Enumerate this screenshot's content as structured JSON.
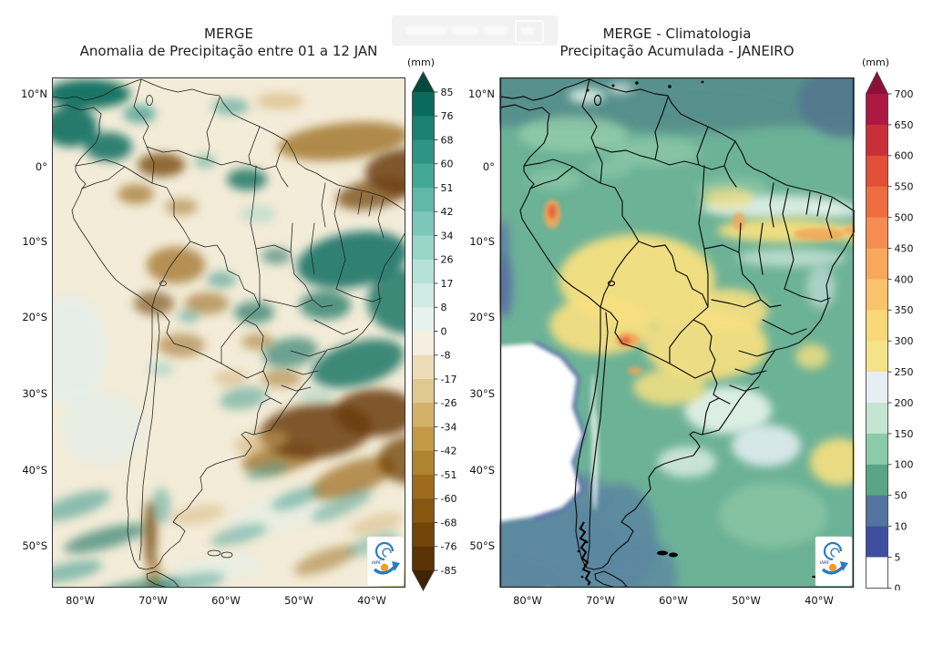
{
  "figure": {
    "left_panel": {
      "title_line1": "MERGE",
      "title_line2": "Anomalia de Precipitação entre 01 a 12 JAN",
      "colorbar": {
        "unit": "(mm)",
        "extend_top": true,
        "extend_bottom": true,
        "arrow_top_color": "#04493e",
        "arrow_bottom_color": "#3f2303",
        "ticks": [
          "85",
          "76",
          "68",
          "60",
          "51",
          "42",
          "34",
          "26",
          "17",
          "8",
          "0",
          "-8",
          "-17",
          "-26",
          "-34",
          "-42",
          "-51",
          "-60",
          "-68",
          "-76",
          "-85"
        ],
        "segment_colors_top_to_bottom": [
          "#0a6b5d",
          "#1b8070",
          "#2e9484",
          "#45a796",
          "#60b8a8",
          "#7cc7b9",
          "#99d5c9",
          "#b5e1d8",
          "#cfeae3",
          "#e7f2ee",
          "#f4efe0",
          "#ecddb6",
          "#e0c98e",
          "#d2b268",
          "#c29a47",
          "#b0832e",
          "#9c6c1c",
          "#875710",
          "#714408",
          "#5b3305"
        ]
      },
      "lat_ticks": [
        "10°N",
        "0°",
        "10°S",
        "20°S",
        "30°S",
        "40°S",
        "50°S"
      ],
      "lon_ticks": [
        "80°W",
        "70°W",
        "60°W",
        "50°W",
        "40°W"
      ]
    },
    "right_panel": {
      "title_line1": "MERGE - Climatologia",
      "title_line2": "Precipitação Acumulada - JANEIRO",
      "colorbar": {
        "unit": "(mm)",
        "extend_top": true,
        "extend_bottom": false,
        "arrow_top_color": "#8e1038",
        "arrow_bottom_color": "#ffffff",
        "ticks": [
          "700",
          "650",
          "600",
          "550",
          "500",
          "450",
          "400",
          "350",
          "300",
          "250",
          "200",
          "150",
          "100",
          "50",
          "10",
          "5",
          "0"
        ],
        "segment_colors_top_to_bottom": [
          "#ac1943",
          "#c92f38",
          "#e04f36",
          "#ef6e41",
          "#f58c51",
          "#f8a75d",
          "#fac36b",
          "#f9d977",
          "#f4e389",
          "#e6eef3",
          "#c5e5d3",
          "#8ccbaa",
          "#58a687",
          "#52749f",
          "#3f4f9e",
          "#ffffff"
        ]
      },
      "lat_ticks": [
        "10°N",
        "0°",
        "10°S",
        "20°S",
        "30°S",
        "40°S",
        "50°S"
      ],
      "lon_ticks": [
        "80°W",
        "70°W",
        "60°W",
        "50°W",
        "40°W"
      ]
    },
    "logo_text": "INPE"
  }
}
